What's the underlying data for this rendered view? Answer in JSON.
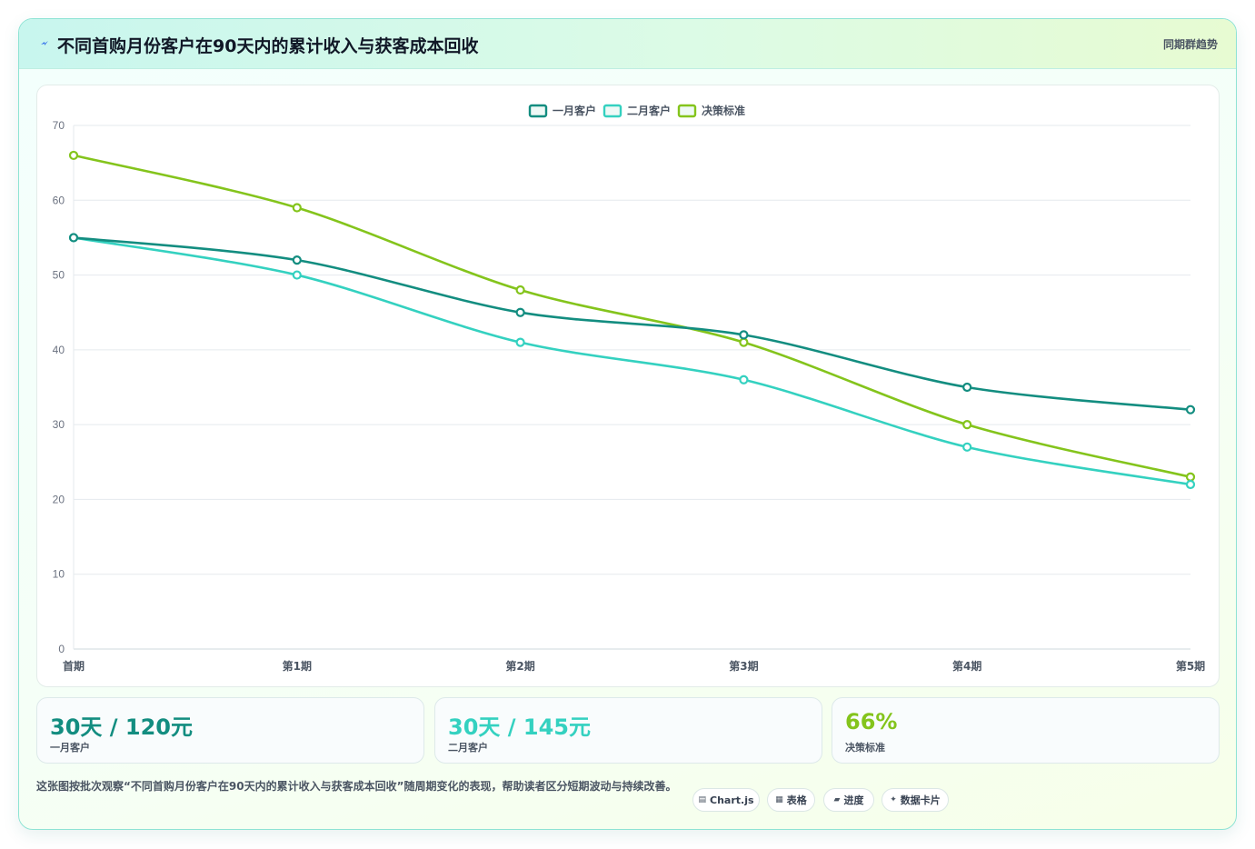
{
  "header": {
    "title": "不同首购月份客户在90天内的累计收入与获客成本回收",
    "tag": "同期群趋势"
  },
  "chart_data": {
    "type": "line",
    "categories": [
      "首期",
      "第1期",
      "第2期",
      "第3期",
      "第4期",
      "第5期"
    ],
    "series": [
      {
        "name": "一月客户",
        "values": [
          55,
          52,
          45,
          42,
          35,
          32
        ],
        "color": "#138d80"
      },
      {
        "name": "二月客户",
        "values": [
          55,
          50,
          41,
          36,
          27,
          22
        ],
        "color": "#34d1c0"
      },
      {
        "name": "决策标准",
        "values": [
          66,
          59,
          48,
          41,
          30,
          23
        ],
        "color": "#84c41c"
      }
    ],
    "ylim": [
      0,
      70
    ],
    "yticks": [
      0,
      10,
      20,
      30,
      40,
      50,
      60,
      70
    ],
    "legend": "top-center",
    "grid": true
  },
  "kpis": [
    {
      "value": "30天 / 120元",
      "label": "一月客户",
      "color": "#138d80"
    },
    {
      "value": "30天 / 145元",
      "label": "二月客户",
      "color": "#34d1c0"
    },
    {
      "value": "66%",
      "label": "决策标准",
      "color": "#84c41c"
    }
  ],
  "description": "这张图按批次观察“不同首购月份客户在90天内的累计收入与获客成本回收”随周期变化的表现，帮助读者区分短期波动与持续改善。",
  "chips": [
    {
      "icon": "▤",
      "label": "Chart.js"
    },
    {
      "icon": "▦",
      "label": "表格"
    },
    {
      "icon": "▰",
      "label": "进度"
    },
    {
      "icon": "✦",
      "label": "数据卡片"
    }
  ]
}
